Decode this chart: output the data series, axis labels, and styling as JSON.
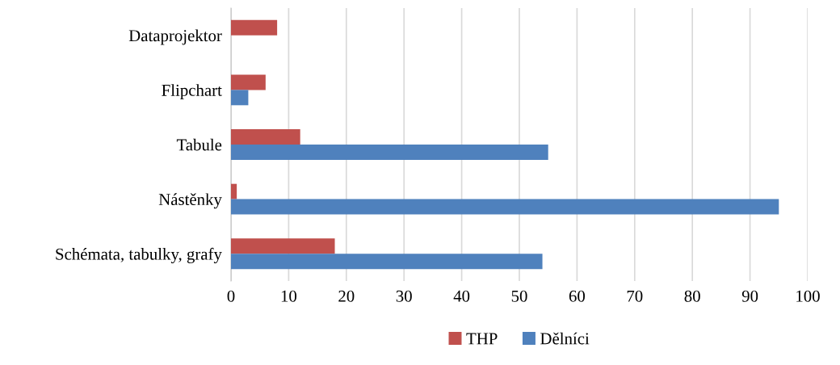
{
  "chart_data": {
    "type": "bar",
    "orientation": "horizontal",
    "categories": [
      "Dataprojektor",
      "Flipchart",
      "Tabule",
      "Nástěnky",
      "Schémata, tabulky, grafy"
    ],
    "series": [
      {
        "name": "THP",
        "color": "#c0504d",
        "values": [
          8,
          6,
          12,
          1,
          18
        ]
      },
      {
        "name": "Dělníci",
        "color": "#4f81bd",
        "values": [
          0,
          3,
          55,
          95,
          54
        ]
      }
    ],
    "xlim": [
      0,
      100
    ],
    "xticks": [
      0,
      10,
      20,
      30,
      40,
      50,
      60,
      70,
      80,
      90,
      100
    ],
    "grid": "x",
    "legend": "bottom"
  }
}
